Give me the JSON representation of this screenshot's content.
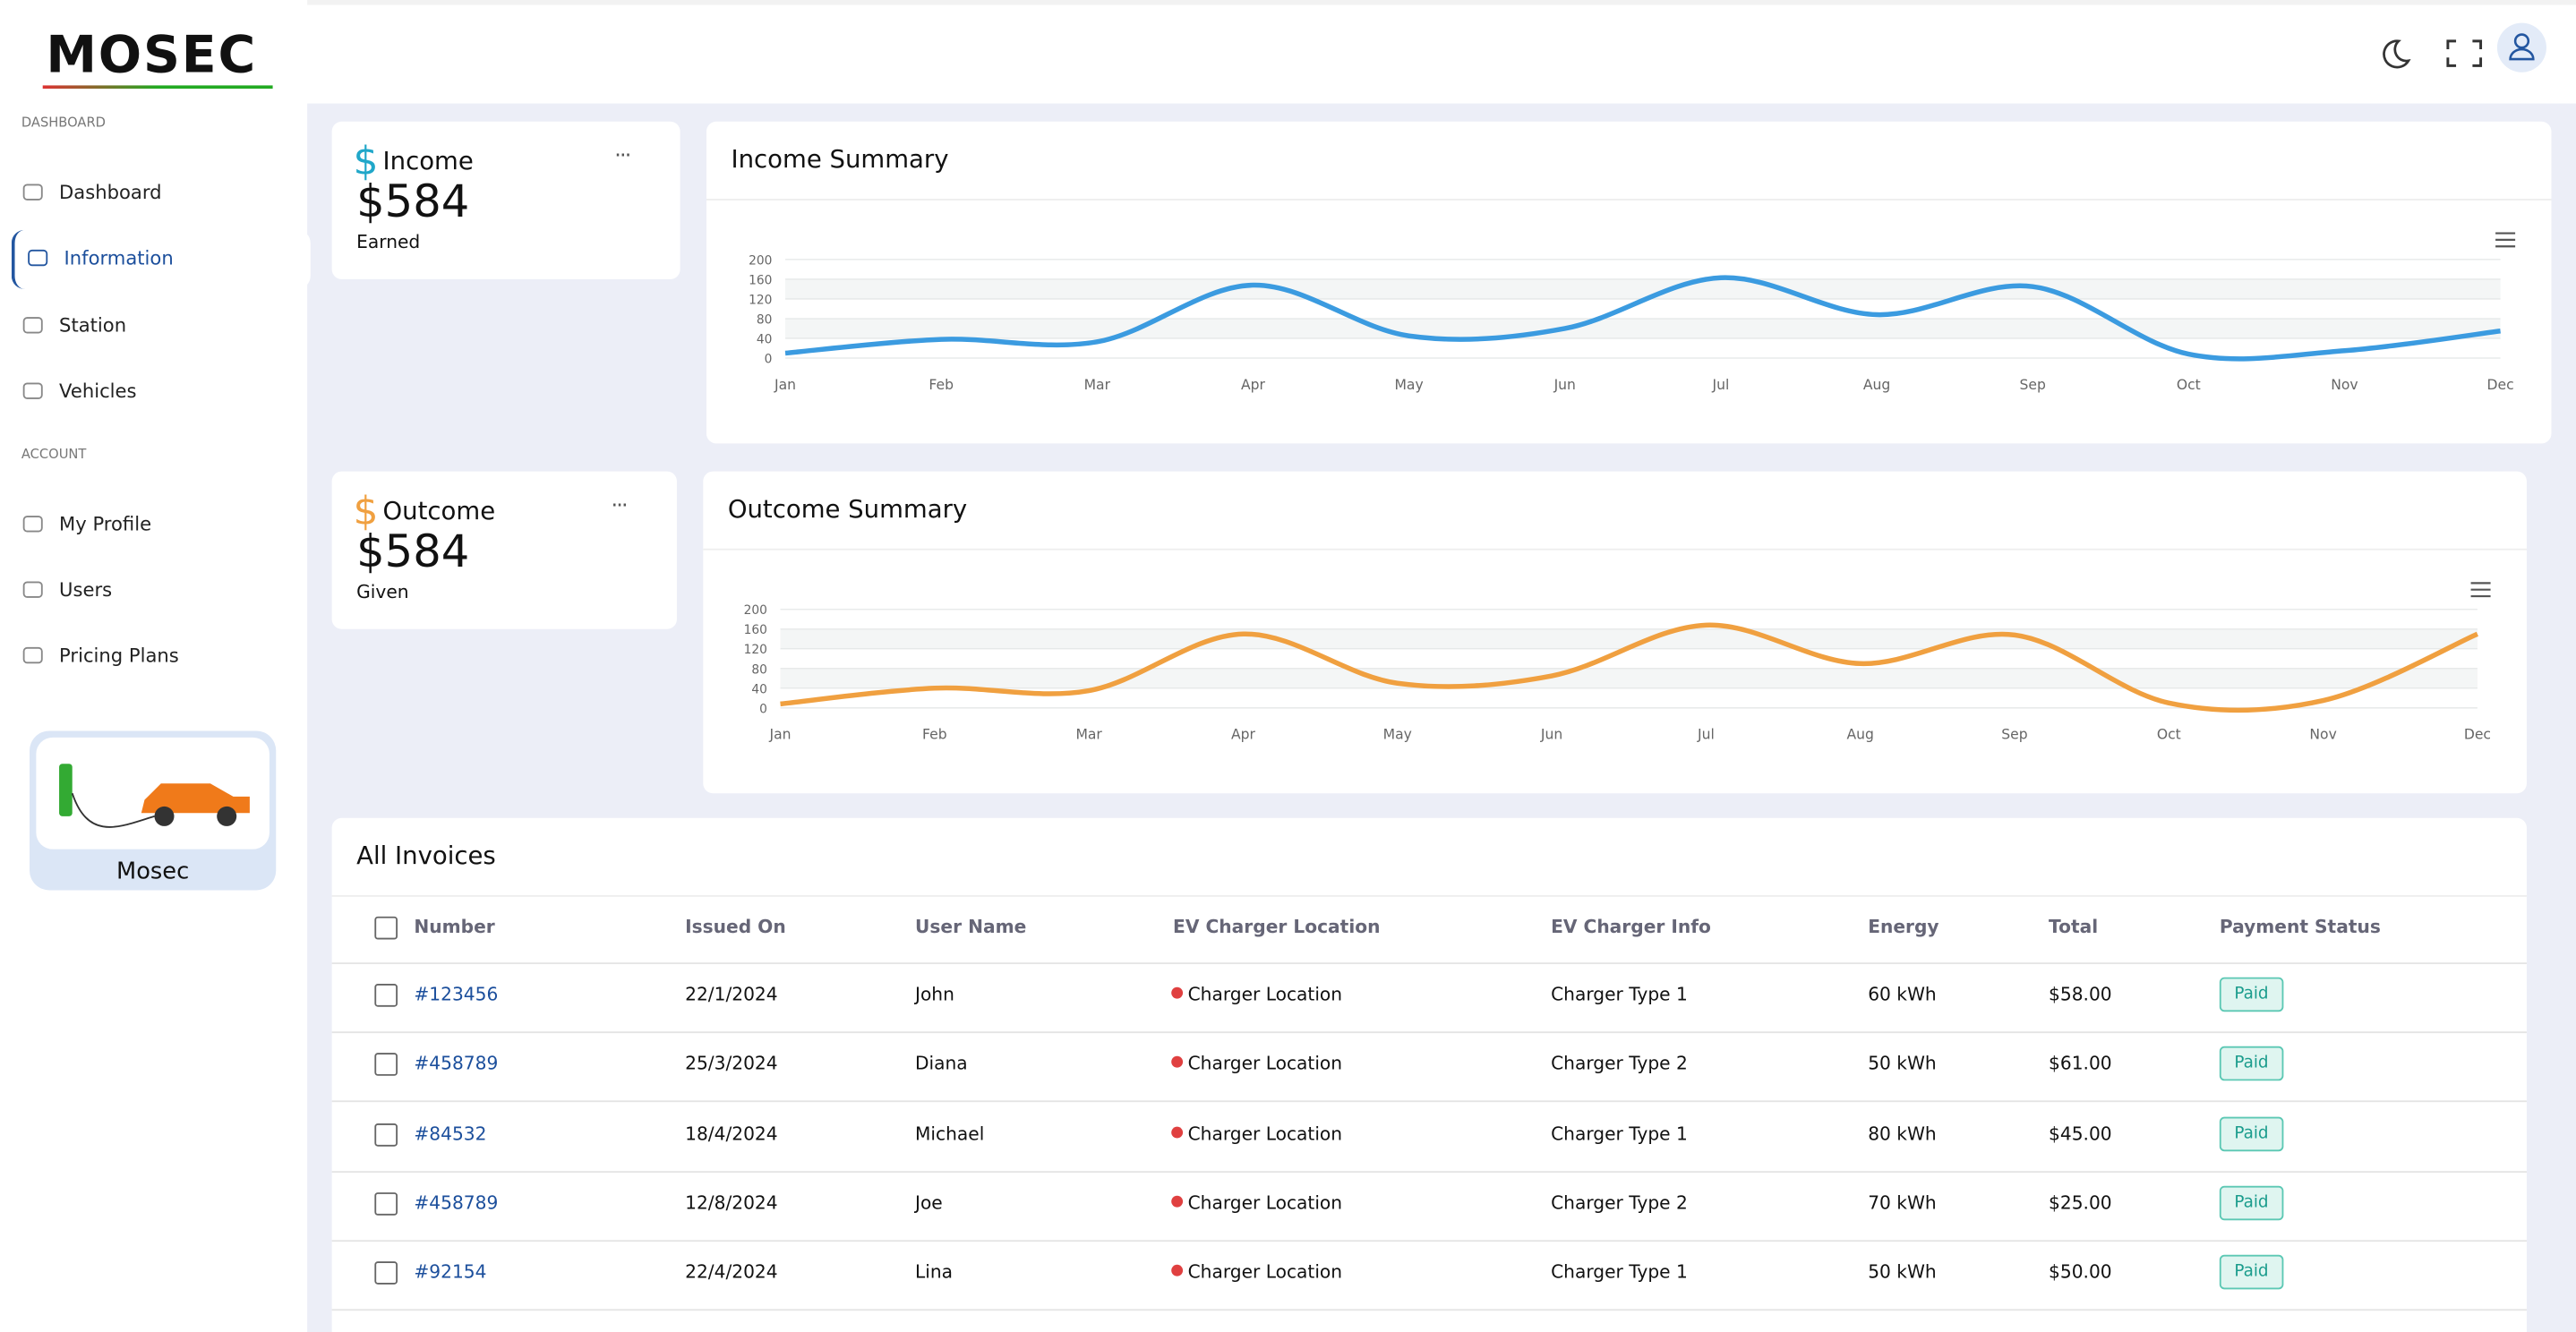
{
  "logo": "MOSEC",
  "sidebar": {
    "sections": [
      {
        "label": "DASHBOARD",
        "items": [
          "Dashboard",
          "Information",
          "Station",
          "Vehicles"
        ]
      },
      {
        "label": "ACCOUNT",
        "items": [
          "My Profile",
          "Users",
          "Pricing Plans"
        ]
      }
    ],
    "promo": "Mosec"
  },
  "income_card": {
    "icon": "$",
    "title": "Income",
    "amount": "$584",
    "caption": "Earned"
  },
  "income_chart": {
    "type": "line",
    "title": "Income Summary",
    "categories": [
      "Jan",
      "Feb",
      "Mar",
      "Apr",
      "May",
      "Jun",
      "Jul",
      "Aug",
      "Sep",
      "Oct",
      "Nov",
      "Dec"
    ],
    "values": [
      10,
      38,
      33,
      148,
      45,
      60,
      163,
      88,
      145,
      8,
      15,
      55
    ],
    "color": "#3b9be0",
    "ylim": [
      0,
      200
    ],
    "yticks": [
      0,
      40,
      80,
      120,
      160,
      200
    ]
  },
  "outcome_card": {
    "icon": "$",
    "title": "Outcome",
    "amount": "$584",
    "caption": "Given"
  },
  "outcome_chart": {
    "type": "line",
    "title": "Outcome Summary",
    "categories": [
      "Jan",
      "Feb",
      "Mar",
      "Apr",
      "May",
      "Jun",
      "Jul",
      "Aug",
      "Sep",
      "Oct",
      "Nov",
      "Dec"
    ],
    "values": [
      8,
      40,
      35,
      150,
      50,
      65,
      168,
      90,
      148,
      10,
      15,
      150
    ],
    "color": "#f0a040",
    "ylim": [
      0,
      200
    ],
    "yticks": [
      0,
      40,
      80,
      120,
      160,
      200
    ]
  },
  "invoices": {
    "title": "All Invoices",
    "columns": [
      "Number",
      "Issued On",
      "User Name",
      "EV Charger Location",
      "EV Charger Info",
      "Energy",
      "Total",
      "Payment Status"
    ],
    "rows": [
      [
        "#123456",
        "22/1/2024",
        "John",
        "Charger Location",
        "Charger Type 1",
        "60 kWh",
        "$58.00",
        "Paid"
      ],
      [
        "#458789",
        "25/3/2024",
        "Diana",
        "Charger Location",
        "Charger Type 2",
        "50 kWh",
        "$61.00",
        "Paid"
      ],
      [
        "#84532",
        "18/4/2024",
        "Michael",
        "Charger Location",
        "Charger Type 1",
        "80 kWh",
        "$45.00",
        "Paid"
      ],
      [
        "#458789",
        "12/8/2024",
        "Joe",
        "Charger Location",
        "Charger Type 2",
        "70 kWh",
        "$25.00",
        "Paid"
      ],
      [
        "#92154",
        "22/4/2024",
        "Lina",
        "Charger Location",
        "Charger Type 1",
        "50 kWh",
        "$50.00",
        "Paid"
      ]
    ]
  }
}
